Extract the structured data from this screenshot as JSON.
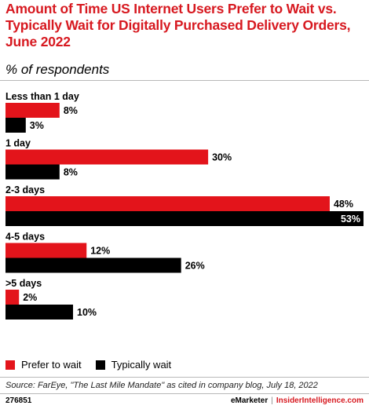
{
  "header": {
    "title": "Amount of Time US Internet Users Prefer to Wait vs. Typically Wait for Digitally Purchased Delivery Orders, June 2022",
    "subtitle": "% of respondents"
  },
  "colors": {
    "prefer": "#e3141b",
    "typical": "#000000",
    "title": "#d71920"
  },
  "chart_data": {
    "type": "bar",
    "orientation": "horizontal",
    "title": "Amount of Time US Internet Users Prefer to Wait vs. Typically Wait for Digitally Purchased Delivery Orders, June 2022",
    "subtitle": "% of respondents",
    "categories": [
      "Less than 1 day",
      "1 day",
      "2-3 days",
      "4-5 days",
      ">5 days"
    ],
    "series": [
      {
        "name": "Prefer to wait",
        "values": [
          8,
          30,
          48,
          12,
          2
        ]
      },
      {
        "name": "Typically wait",
        "values": [
          3,
          8,
          53,
          26,
          10
        ]
      }
    ],
    "value_labels": [
      [
        "8%",
        "30%",
        "48%",
        "12%",
        "2%"
      ],
      [
        "3%",
        "8%",
        "53%",
        "26%",
        "10%"
      ]
    ],
    "xlim": [
      0,
      53
    ],
    "grid": false,
    "legend": "bottom-left"
  },
  "source": "Source: FarEye, \"The Last Mile Mandate\" as cited in company blog, July 18, 2022",
  "footer": {
    "id": "276851",
    "brand": "eMarketer",
    "separator": "|",
    "brand2": "InsiderIntelligence.com"
  }
}
